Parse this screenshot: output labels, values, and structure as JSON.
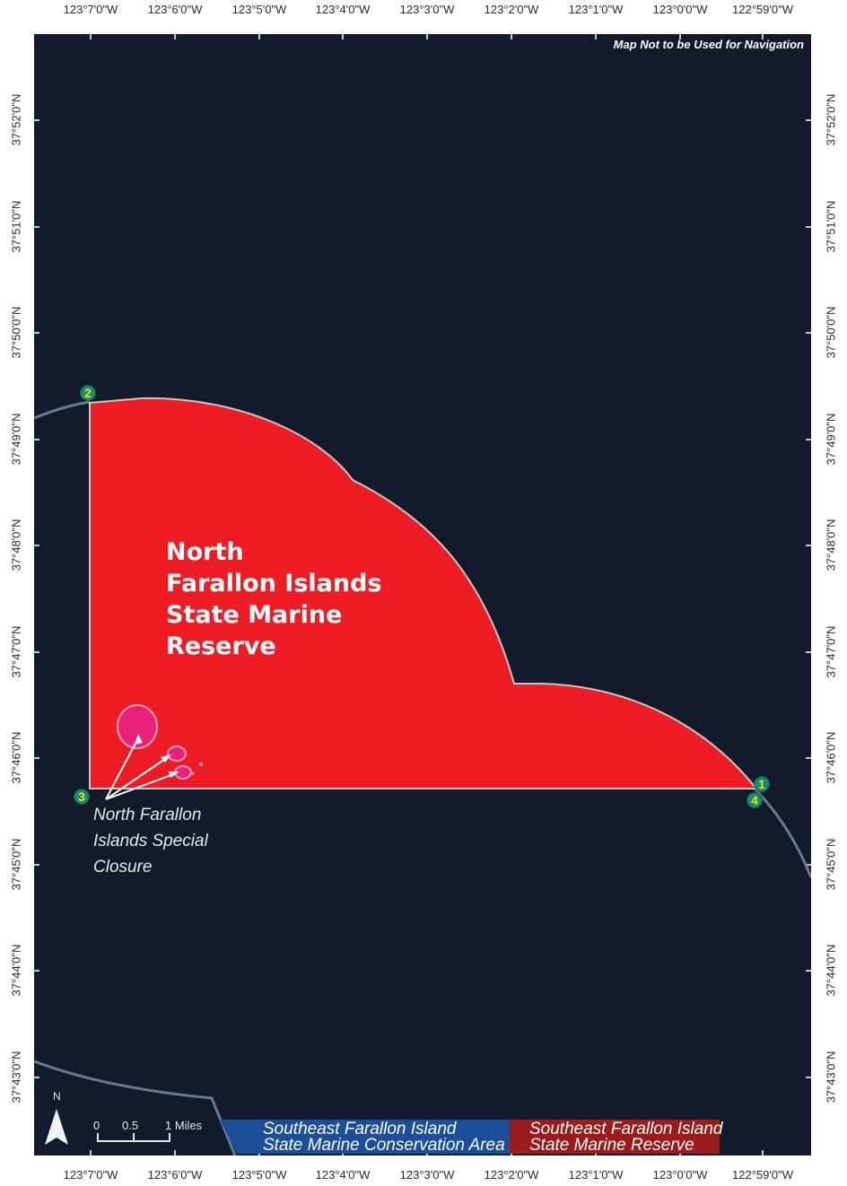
{
  "map": {
    "nav_note": "Map Not to be Used for Navigation",
    "reserve_title_lines": [
      "North",
      "Farallon Islands",
      "State Marine",
      "Reserve"
    ],
    "closure_label_lines": [
      "North Farallon",
      "Islands Special",
      "Closure"
    ],
    "colors": {
      "ocean": "#111b2b",
      "reserve_fill": "#ee1c24",
      "closure_fill": "#e8227a",
      "smca_legend": "#1c4f9a",
      "smr_legend": "#9c1b1b",
      "marker_fill": "#1a8a72",
      "marker_text": "#f4e400"
    },
    "points": [
      "1",
      "2",
      "3",
      "4"
    ],
    "north_label": "N",
    "north_icon": "north-arrow-icon"
  },
  "longitude_ticks": [
    "123°7'0\"W",
    "123°6'0\"W",
    "123°5'0\"W",
    "123°4'0\"W",
    "123°3'0\"W",
    "123°2'0\"W",
    "123°1'0\"W",
    "123°0'0\"W",
    "122°59'0\"W"
  ],
  "latitude_ticks": [
    "37°52'0\"N",
    "37°51'0\"N",
    "37°50'0\"N",
    "37°49'0\"N",
    "37°48'0\"N",
    "37°47'0\"N",
    "37°46'0\"N",
    "37°45'0\"N",
    "37°44'0\"N",
    "37°43'0\"N"
  ],
  "scale_bar": {
    "labels": [
      "0",
      "0.5",
      "1 Miles"
    ]
  },
  "legend": {
    "smca_lines": [
      "Southeast Farallon Island",
      "State Marine Conservation Area"
    ],
    "smr_lines": [
      "Southeast Farallon Island",
      "State Marine Reserve"
    ]
  }
}
